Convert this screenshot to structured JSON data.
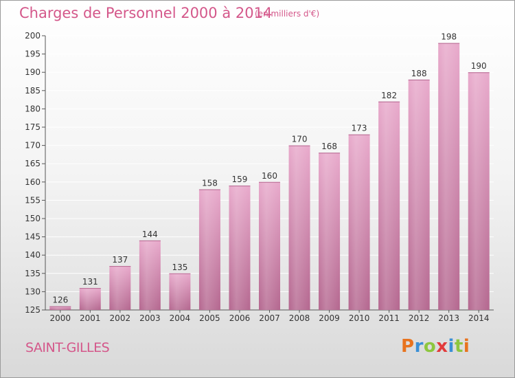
{
  "header": {
    "title": "Charges de Personnel 2000 à 2014",
    "unit": "(en milliers d'€)"
  },
  "footer": {
    "place": "SAINT-GILLES",
    "logo_letters": [
      "P",
      "r",
      "o",
      "x",
      "i",
      "t",
      "i"
    ],
    "logo_colors": [
      "#e8731e",
      "#3a8fd6",
      "#8dc63f",
      "#e23b3b",
      "#3a8fd6",
      "#8dc63f",
      "#e8731e"
    ]
  },
  "chart_data": {
    "type": "bar",
    "title": "Charges de Personnel 2000 à 2014",
    "xlabel": "",
    "ylabel": "",
    "categories": [
      "2000",
      "2001",
      "2002",
      "2003",
      "2004",
      "2005",
      "2006",
      "2007",
      "2008",
      "2009",
      "2010",
      "2011",
      "2012",
      "2013",
      "2014"
    ],
    "values": [
      126,
      131,
      137,
      144,
      135,
      158,
      159,
      160,
      170,
      168,
      173,
      182,
      188,
      198,
      190
    ],
    "ylim": [
      125,
      200
    ],
    "yticks": [
      125,
      130,
      135,
      140,
      145,
      150,
      155,
      160,
      165,
      170,
      175,
      180,
      185,
      190,
      195,
      200
    ],
    "grid": true,
    "colors": {
      "bar_light": "#e8a9cb",
      "bar_dark": "#b4678f",
      "grid": "#ffffff"
    }
  }
}
